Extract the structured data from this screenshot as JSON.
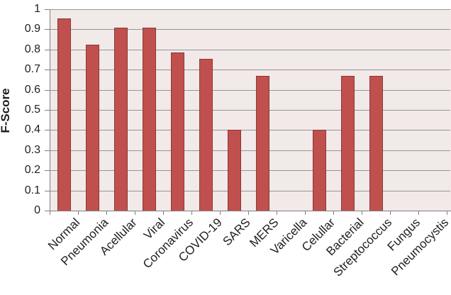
{
  "chart_data": {
    "type": "bar",
    "title": "",
    "ylabel": "F-Score",
    "xlabel": "",
    "categories": [
      "Normal",
      "Pneumonia",
      "Acellular",
      "Viral",
      "Coronavirus",
      "COVID-19",
      "SARS",
      "MERS",
      "Varicella",
      "Celullar",
      "Bacterial",
      "Streptococcus",
      "Fungus",
      "Pneumocystis"
    ],
    "values": [
      0.955,
      0.825,
      0.91,
      0.91,
      0.785,
      0.755,
      0.4,
      0.67,
      0,
      0.4,
      0.67,
      0.67,
      0,
      0
    ],
    "ylim": [
      0,
      1
    ],
    "ytick_step": 0.1,
    "ytick_labels": [
      "0",
      "0.1",
      "0.2",
      "0.3",
      "0.4",
      "0.5",
      "0.6",
      "0.7",
      "0.8",
      "0.9",
      "1"
    ],
    "grid": true,
    "legend_position": "none",
    "colors": {
      "bar_fill": "#C0504D",
      "bar_border": "#8C3836",
      "plot_background": "#F2E9E9",
      "gridline": "#969696",
      "axis_line": "#808080",
      "label_text": "#1F1F1F"
    }
  }
}
